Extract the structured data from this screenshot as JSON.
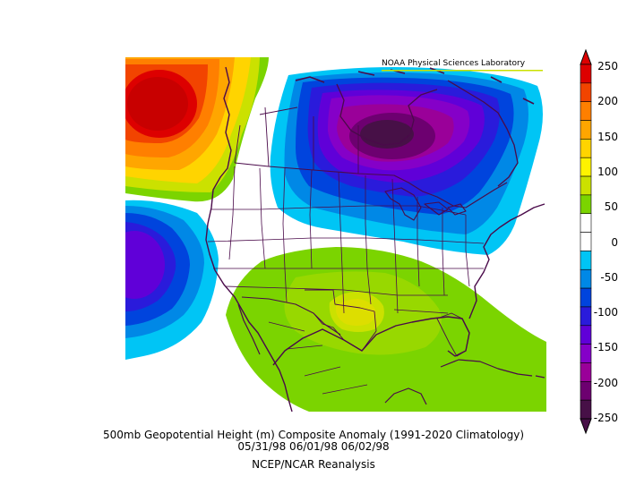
{
  "credit": "NOAA Physical Sciences Laboratory",
  "title_line1": "500mb Geopotential Height (m) Composite Anomaly (1991-2020 Climatology)",
  "title_line2": "05/31/98 06/01/98 06/02/98",
  "title_line3": "NCEP/NCAR Reanalysis",
  "colorbar": {
    "ticks": [
      "250",
      "200",
      "150",
      "100",
      "50",
      "0",
      "-50",
      "-100",
      "-150",
      "-200",
      "-250"
    ],
    "colors": [
      "#dd0000",
      "#f24400",
      "#ff7f00",
      "#ffa600",
      "#ffd400",
      "#fff300",
      "#cbe100",
      "#7bd400",
      "#ffffff",
      "#ffffff",
      "#00c5f5",
      "#0088e6",
      "#0044dd",
      "#2a1bdb",
      "#6000d8",
      "#8500c8",
      "#9a0099",
      "#6d0070",
      "#471047"
    ]
  },
  "map_features": {
    "anomalies": [
      {
        "name": "ridge-north-pacific",
        "sign": "positive",
        "peak": 250
      },
      {
        "name": "trough-eastern-canada",
        "sign": "negative",
        "peak": -250
      },
      {
        "name": "trough-eastern-pacific",
        "sign": "negative",
        "peak": -150
      },
      {
        "name": "ridge-southern-us-gulf",
        "sign": "positive",
        "peak": 100
      }
    ]
  }
}
